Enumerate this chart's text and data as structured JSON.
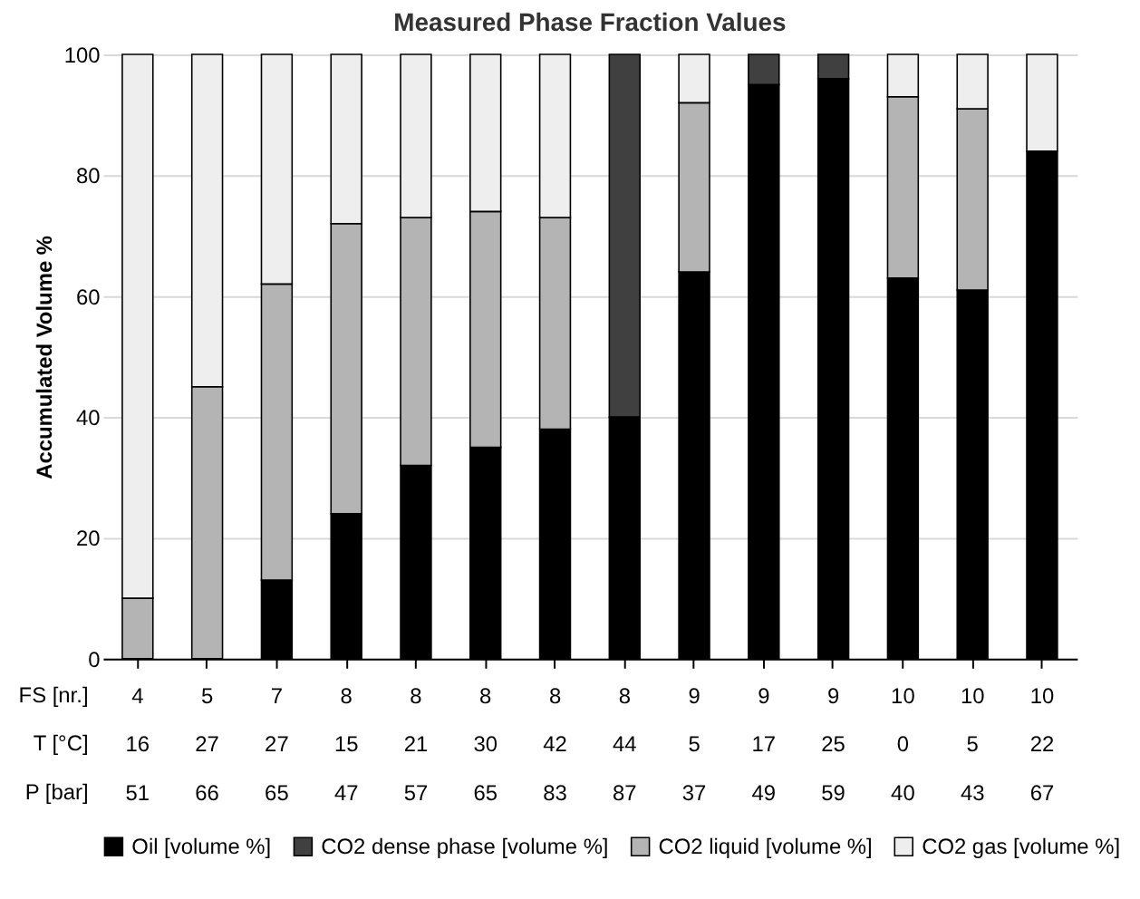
{
  "chart_data": {
    "type": "bar",
    "stacked": true,
    "title": "Measured Phase Fraction Values",
    "ylabel": "Accumulated Volume %",
    "categories": [
      "4\n16\n51",
      "5\n27\n66",
      "7\n27\n65",
      "8\n15\n47",
      "8\n21\n57",
      "8\n30\n65",
      "8\n42\n83",
      "8\n44\n87",
      "9\n5\n37",
      "9\n17\n49",
      "9\n25\n59",
      "10\n0\n40",
      "10\n5\n43",
      "10\n22\n67"
    ],
    "series": [
      {
        "name": "Oil [volume %]",
        "color": "#000000",
        "values": [
          null,
          null,
          13,
          24,
          32,
          35,
          38,
          40,
          64,
          95,
          96,
          63,
          61,
          84
        ]
      },
      {
        "name": "CO2 dense phase [volume %]",
        "color": "#404040",
        "values": [
          null,
          null,
          null,
          null,
          null,
          null,
          null,
          60,
          null,
          5,
          4,
          null,
          null,
          null
        ]
      },
      {
        "name": "CO2 liquid [volume %]",
        "color": "#b4b4b4",
        "values": [
          10,
          45,
          49,
          48,
          41,
          39,
          35,
          null,
          28,
          null,
          null,
          30,
          30,
          null
        ]
      },
      {
        "name": "CO2 gas [volume %]",
        "color": "#eeeeee",
        "values": [
          90,
          55,
          38,
          28,
          27,
          26,
          27,
          null,
          8,
          null,
          null,
          7,
          9,
          16
        ]
      }
    ],
    "ylim": [
      0,
      100
    ],
    "yticks": [
      0,
      20,
      40,
      60,
      80,
      100
    ],
    "grid": "y",
    "legend": "bottom",
    "annotations": [
      "FS [nr.]\nT [°C]\nP [bar]"
    ]
  }
}
